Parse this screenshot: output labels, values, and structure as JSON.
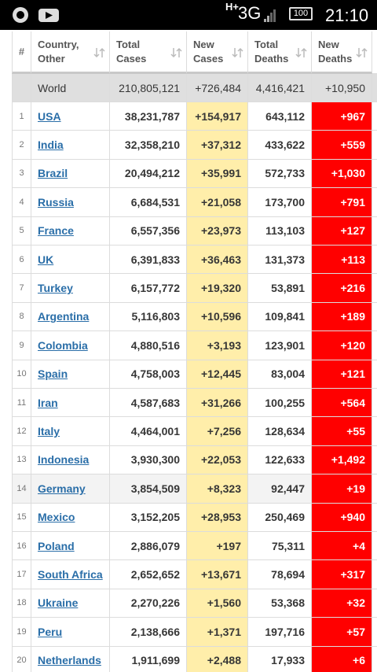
{
  "status_bar": {
    "network_type": "H+",
    "signal": "3G",
    "battery": "100",
    "time": "21:10"
  },
  "table": {
    "headers": [
      "#",
      "Country, Other",
      "Total Cases",
      "New Cases",
      "Total Deaths",
      "New Deaths"
    ],
    "world": [
      "",
      "World",
      "210,805,121",
      "+726,484",
      "4,416,421",
      "+10,950"
    ],
    "rows": [
      [
        "1",
        "USA",
        "38,231,787",
        "+154,917",
        "643,112",
        "+967"
      ],
      [
        "2",
        "India",
        "32,358,210",
        "+37,312",
        "433,622",
        "+559"
      ],
      [
        "3",
        "Brazil",
        "20,494,212",
        "+35,991",
        "572,733",
        "+1,030"
      ],
      [
        "4",
        "Russia",
        "6,684,531",
        "+21,058",
        "173,700",
        "+791"
      ],
      [
        "5",
        "France",
        "6,557,356",
        "+23,973",
        "113,103",
        "+127"
      ],
      [
        "6",
        "UK",
        "6,391,833",
        "+36,463",
        "131,373",
        "+113"
      ],
      [
        "7",
        "Turkey",
        "6,157,772",
        "+19,320",
        "53,891",
        "+216"
      ],
      [
        "8",
        "Argentina",
        "5,116,803",
        "+10,596",
        "109,841",
        "+189"
      ],
      [
        "9",
        "Colombia",
        "4,880,516",
        "+3,193",
        "123,901",
        "+120"
      ],
      [
        "10",
        "Spain",
        "4,758,003",
        "+12,445",
        "83,004",
        "+121"
      ],
      [
        "11",
        "Iran",
        "4,587,683",
        "+31,266",
        "100,255",
        "+564"
      ],
      [
        "12",
        "Italy",
        "4,464,001",
        "+7,256",
        "128,634",
        "+55"
      ],
      [
        "13",
        "Indonesia",
        "3,930,300",
        "+22,053",
        "122,633",
        "+1,492"
      ],
      [
        "14",
        "Germany",
        "3,854,509",
        "+8,323",
        "92,447",
        "+19"
      ],
      [
        "15",
        "Mexico",
        "3,152,205",
        "+28,953",
        "250,469",
        "+940"
      ],
      [
        "16",
        "Poland",
        "2,886,079",
        "+197",
        "75,311",
        "+4"
      ],
      [
        "17",
        "South Africa",
        "2,652,652",
        "+13,671",
        "78,694",
        "+317"
      ],
      [
        "18",
        "Ukraine",
        "2,270,226",
        "+1,560",
        "53,368",
        "+32"
      ],
      [
        "19",
        "Peru",
        "2,138,666",
        "+1,371",
        "197,716",
        "+57"
      ],
      [
        "20",
        "Netherlands",
        "1,911,699",
        "+2,488",
        "17,933",
        "+6"
      ]
    ]
  }
}
